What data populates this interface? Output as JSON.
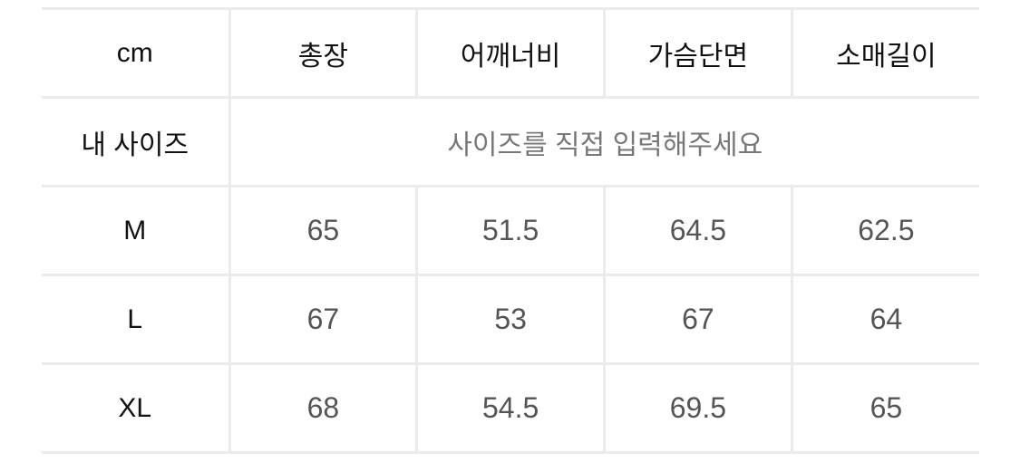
{
  "table": {
    "unit_label": "cm",
    "columns": [
      "총장",
      "어깨너비",
      "가슴단면",
      "소매길이"
    ],
    "my_size": {
      "label": "내 사이즈",
      "placeholder": "사이즈를 직접 입력해주세요"
    },
    "rows": [
      {
        "size": "M",
        "values": [
          "65",
          "51.5",
          "64.5",
          "62.5"
        ]
      },
      {
        "size": "L",
        "values": [
          "67",
          "53",
          "67",
          "64"
        ]
      },
      {
        "size": "XL",
        "values": [
          "68",
          "54.5",
          "69.5",
          "65"
        ]
      }
    ]
  }
}
